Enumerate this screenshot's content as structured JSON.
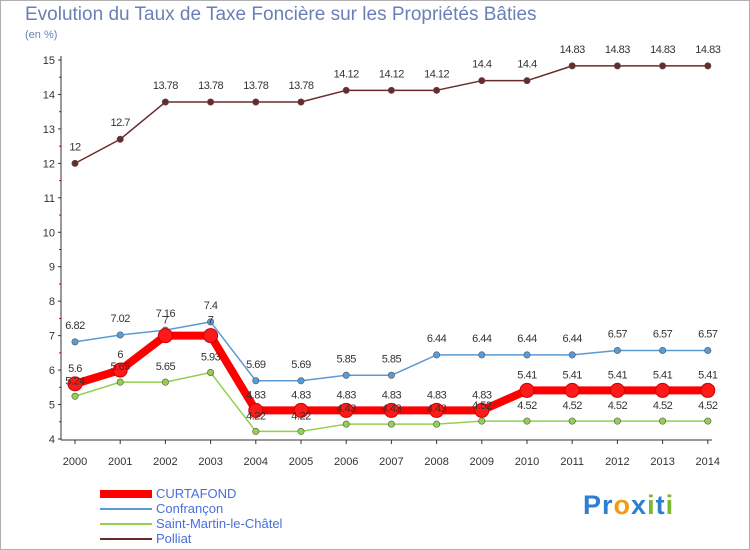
{
  "title": "Evolution du Taux de Taxe Foncière sur les Propriétés Bâties",
  "unit": "(en %)",
  "logo": {
    "text": "Proxiti",
    "letters": [
      "P",
      "r",
      "o",
      "x",
      "i",
      "t",
      "i"
    ],
    "colors": [
      "#2e7fd1",
      "#2e7fd1",
      "#f39c12",
      "#2e7fd1",
      "#7cb82f",
      "#2e7fd1",
      "#7cb82f"
    ]
  },
  "chart_data": {
    "type": "line",
    "title": "Evolution du Taux de Taxe Foncière sur les Propriétés Bâties",
    "ylabel": "(en %)",
    "xlabel": "",
    "categories": [
      "2000",
      "2001",
      "2002",
      "2003",
      "2004",
      "2005",
      "2006",
      "2007",
      "2008",
      "2009",
      "2010",
      "2011",
      "2012",
      "2013",
      "2014"
    ],
    "ylim": [
      4,
      15
    ],
    "yticks": [
      "4",
      "5",
      "6",
      "7",
      "8",
      "9",
      "10",
      "11",
      "12",
      "13",
      "14",
      "15"
    ],
    "series": [
      {
        "name": "CURTAFOND",
        "color": "#ff0000",
        "values": [
          5.6,
          6,
          7,
          7,
          4.83,
          4.83,
          4.83,
          4.83,
          4.83,
          4.83,
          5.41,
          5.41,
          5.41,
          5.41,
          5.41
        ],
        "labels": [
          "5.6",
          "6",
          "7",
          "7",
          "4.83",
          "4.83",
          "4.83",
          "4.83",
          "4.83",
          "4.83",
          "5.41",
          "5.41",
          "5.41",
          "5.41",
          "5.41"
        ]
      },
      {
        "name": "Confrançon",
        "color": "#5b9bd5",
        "values": [
          6.82,
          7.02,
          7.16,
          7.4,
          5.69,
          5.69,
          5.85,
          5.85,
          6.44,
          6.44,
          6.44,
          6.44,
          6.57,
          6.57,
          6.57
        ],
        "labels": [
          "6.82",
          "7.02",
          "7.16",
          "7.4",
          "5.69",
          "5.69",
          "5.85",
          "5.85",
          "6.44",
          "6.44",
          "6.44",
          "6.44",
          "6.57",
          "6.57",
          "6.57"
        ]
      },
      {
        "name": "Saint-Martin-le-Châtel",
        "color": "#92d050",
        "values": [
          5.24,
          5.65,
          5.65,
          5.93,
          4.22,
          4.22,
          4.43,
          4.43,
          4.43,
          4.52,
          4.52,
          4.52,
          4.52,
          4.52,
          4.52
        ],
        "labels": [
          "5.24",
          "5.65",
          "5.65",
          "5.93",
          "4.22",
          "4.22",
          "4.43",
          "4.43",
          "4.43",
          "4.52",
          "4.52",
          "4.52",
          "4.52",
          "4.52",
          "4.52"
        ]
      },
      {
        "name": "Polliat",
        "color": "#6b2a2a",
        "values": [
          12,
          12.7,
          13.78,
          13.78,
          13.78,
          13.78,
          14.12,
          14.12,
          14.12,
          14.4,
          14.4,
          14.83,
          14.83,
          14.83,
          14.83
        ],
        "labels": [
          "12",
          "12.7",
          "13.78",
          "13.78",
          "13.78",
          "13.78",
          "14.12",
          "14.12",
          "14.12",
          "14.4",
          "14.4",
          "14.83",
          "14.83",
          "14.83",
          "14.83"
        ]
      }
    ],
    "legend": "bottom-left",
    "grid": false
  }
}
